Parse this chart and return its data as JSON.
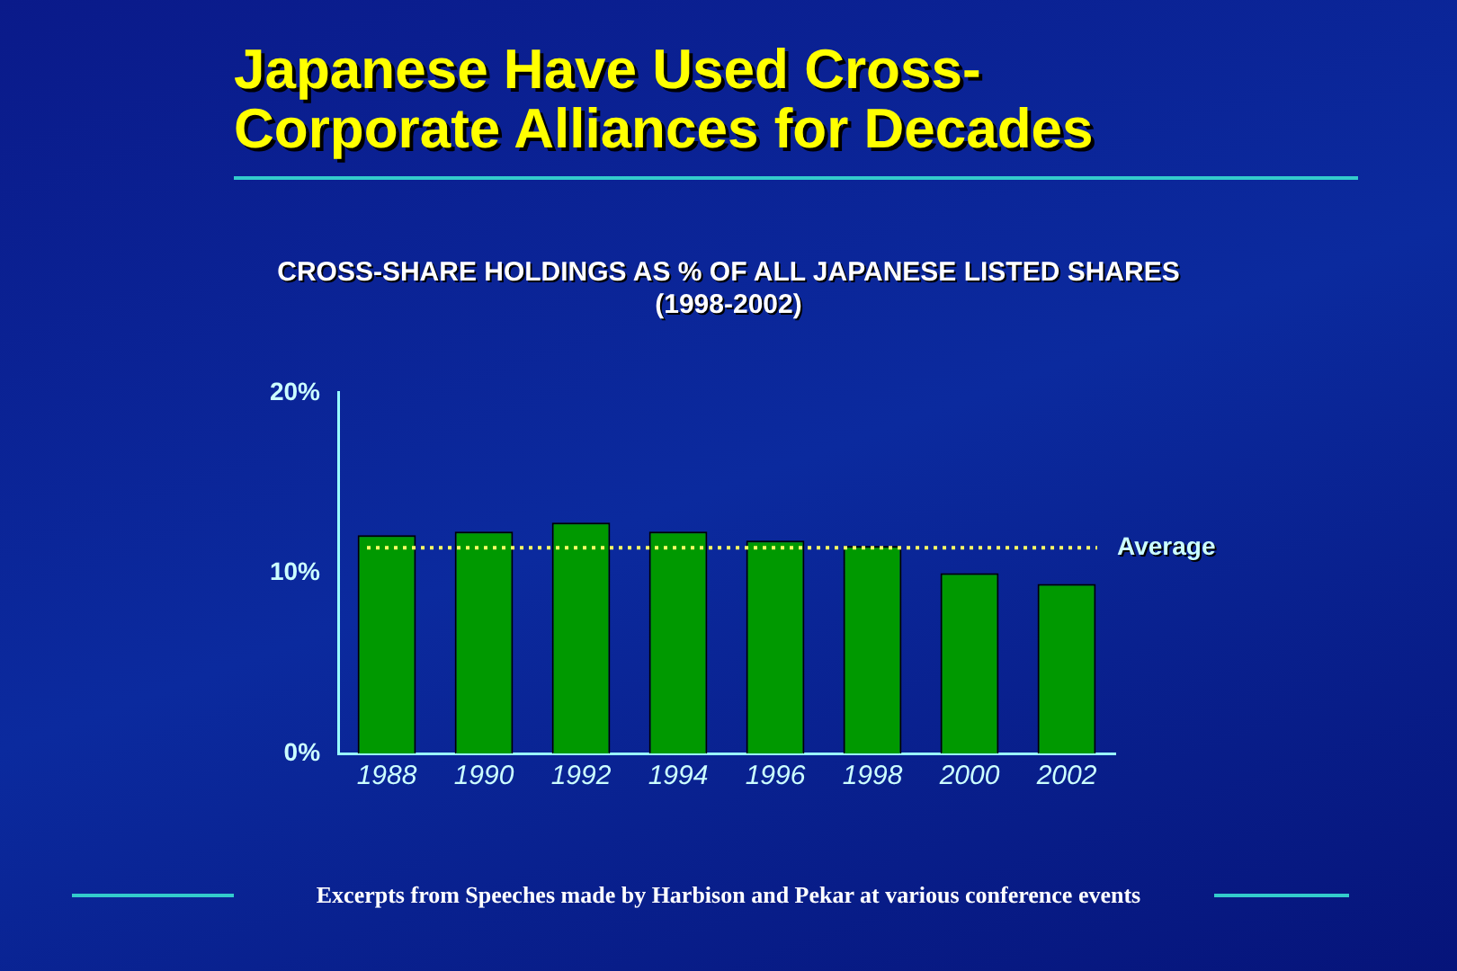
{
  "chart_data": {
    "type": "bar",
    "title": "Japanese Have Used Cross-Corporate Alliances for Decades",
    "subtitle": "CROSS-SHARE HOLDINGS AS % OF ALL JAPANESE LISTED SHARES\n(1998-2002)",
    "categories": [
      "1988",
      "1990",
      "1992",
      "1994",
      "1996",
      "1998",
      "2000",
      "2002"
    ],
    "values": [
      12.1,
      12.3,
      12.8,
      12.3,
      11.8,
      11.5,
      10.0,
      9.4
    ],
    "color": "#009900",
    "ylim": [
      0,
      20
    ],
    "yticks": [
      {
        "value": 0,
        "label": "0%"
      },
      {
        "value": 10,
        "label": "10%"
      },
      {
        "value": 20,
        "label": "20%"
      }
    ],
    "grid": false,
    "legend": false,
    "ref_lines": [
      {
        "axis": "y",
        "value": 11.4,
        "label": "Average",
        "color": "#ffff66",
        "line_style": "dotted"
      }
    ],
    "annotations": [
      "Excerpts from Speeches made by Harbison and Pekar at various conference events"
    ]
  }
}
